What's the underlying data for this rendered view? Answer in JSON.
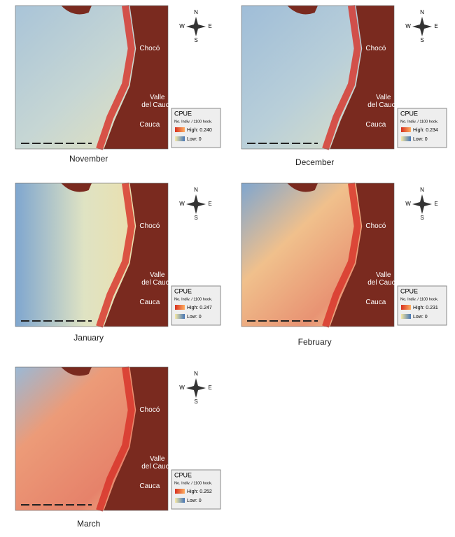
{
  "panels": [
    {
      "month": "November",
      "compass": {
        "n": "N",
        "e": "E",
        "s": "S",
        "w": "W"
      },
      "regions": [
        {
          "lines": [
            "Chocó"
          ]
        },
        {
          "lines": [
            "Valle",
            "del Cauca"
          ]
        },
        {
          "lines": [
            "Cauca"
          ]
        }
      ],
      "legend": {
        "title": "CPUE",
        "unit": "No. Indiv. / 1100 hook.",
        "high": "High: 0.240",
        "low": "Low: 0"
      }
    },
    {
      "month": "December",
      "compass": {
        "n": "N",
        "e": "E",
        "s": "S",
        "w": "W"
      },
      "regions": [
        {
          "lines": [
            "Chocó"
          ]
        },
        {
          "lines": [
            "Valle",
            "del Cauca"
          ]
        },
        {
          "lines": [
            "Cauca"
          ]
        }
      ],
      "legend": {
        "title": "CPUE",
        "unit": "No. Indiv. / 1100 hook.",
        "high": "High: 0.234",
        "low": "Low: 0"
      }
    },
    {
      "month": "January",
      "compass": {
        "n": "N",
        "e": "E",
        "s": "S",
        "w": "W"
      },
      "regions": [
        {
          "lines": [
            "Chocó"
          ]
        },
        {
          "lines": [
            "Valle",
            "del Cauca"
          ]
        },
        {
          "lines": [
            "Cauca"
          ]
        }
      ],
      "legend": {
        "title": "CPUE",
        "unit": "No. Indiv. / 1100 hook.",
        "high": "High: 0.247",
        "low": "Low: 0"
      }
    },
    {
      "month": "February",
      "compass": {
        "n": "N",
        "e": "E",
        "s": "S",
        "w": "W"
      },
      "regions": [
        {
          "lines": [
            "Chocó"
          ]
        },
        {
          "lines": [
            "Valle",
            "del Cauca"
          ]
        },
        {
          "lines": [
            "Cauca"
          ]
        }
      ],
      "legend": {
        "title": "CPUE",
        "unit": "No. Indiv. / 1100 hook.",
        "high": "High: 0.231",
        "low": "Low: 0"
      }
    },
    {
      "month": "March",
      "compass": {
        "n": "N",
        "e": "E",
        "s": "S",
        "w": "W"
      },
      "regions": [
        {
          "lines": [
            "Chocó"
          ]
        },
        {
          "lines": [
            "Valle",
            "del Cauca"
          ]
        },
        {
          "lines": [
            "Cauca"
          ]
        }
      ],
      "legend": {
        "title": "CPUE",
        "unit": "No. Indiv. / 1100 hook.",
        "high": "High: 0.252",
        "low": "Low: 0"
      }
    }
  ]
}
